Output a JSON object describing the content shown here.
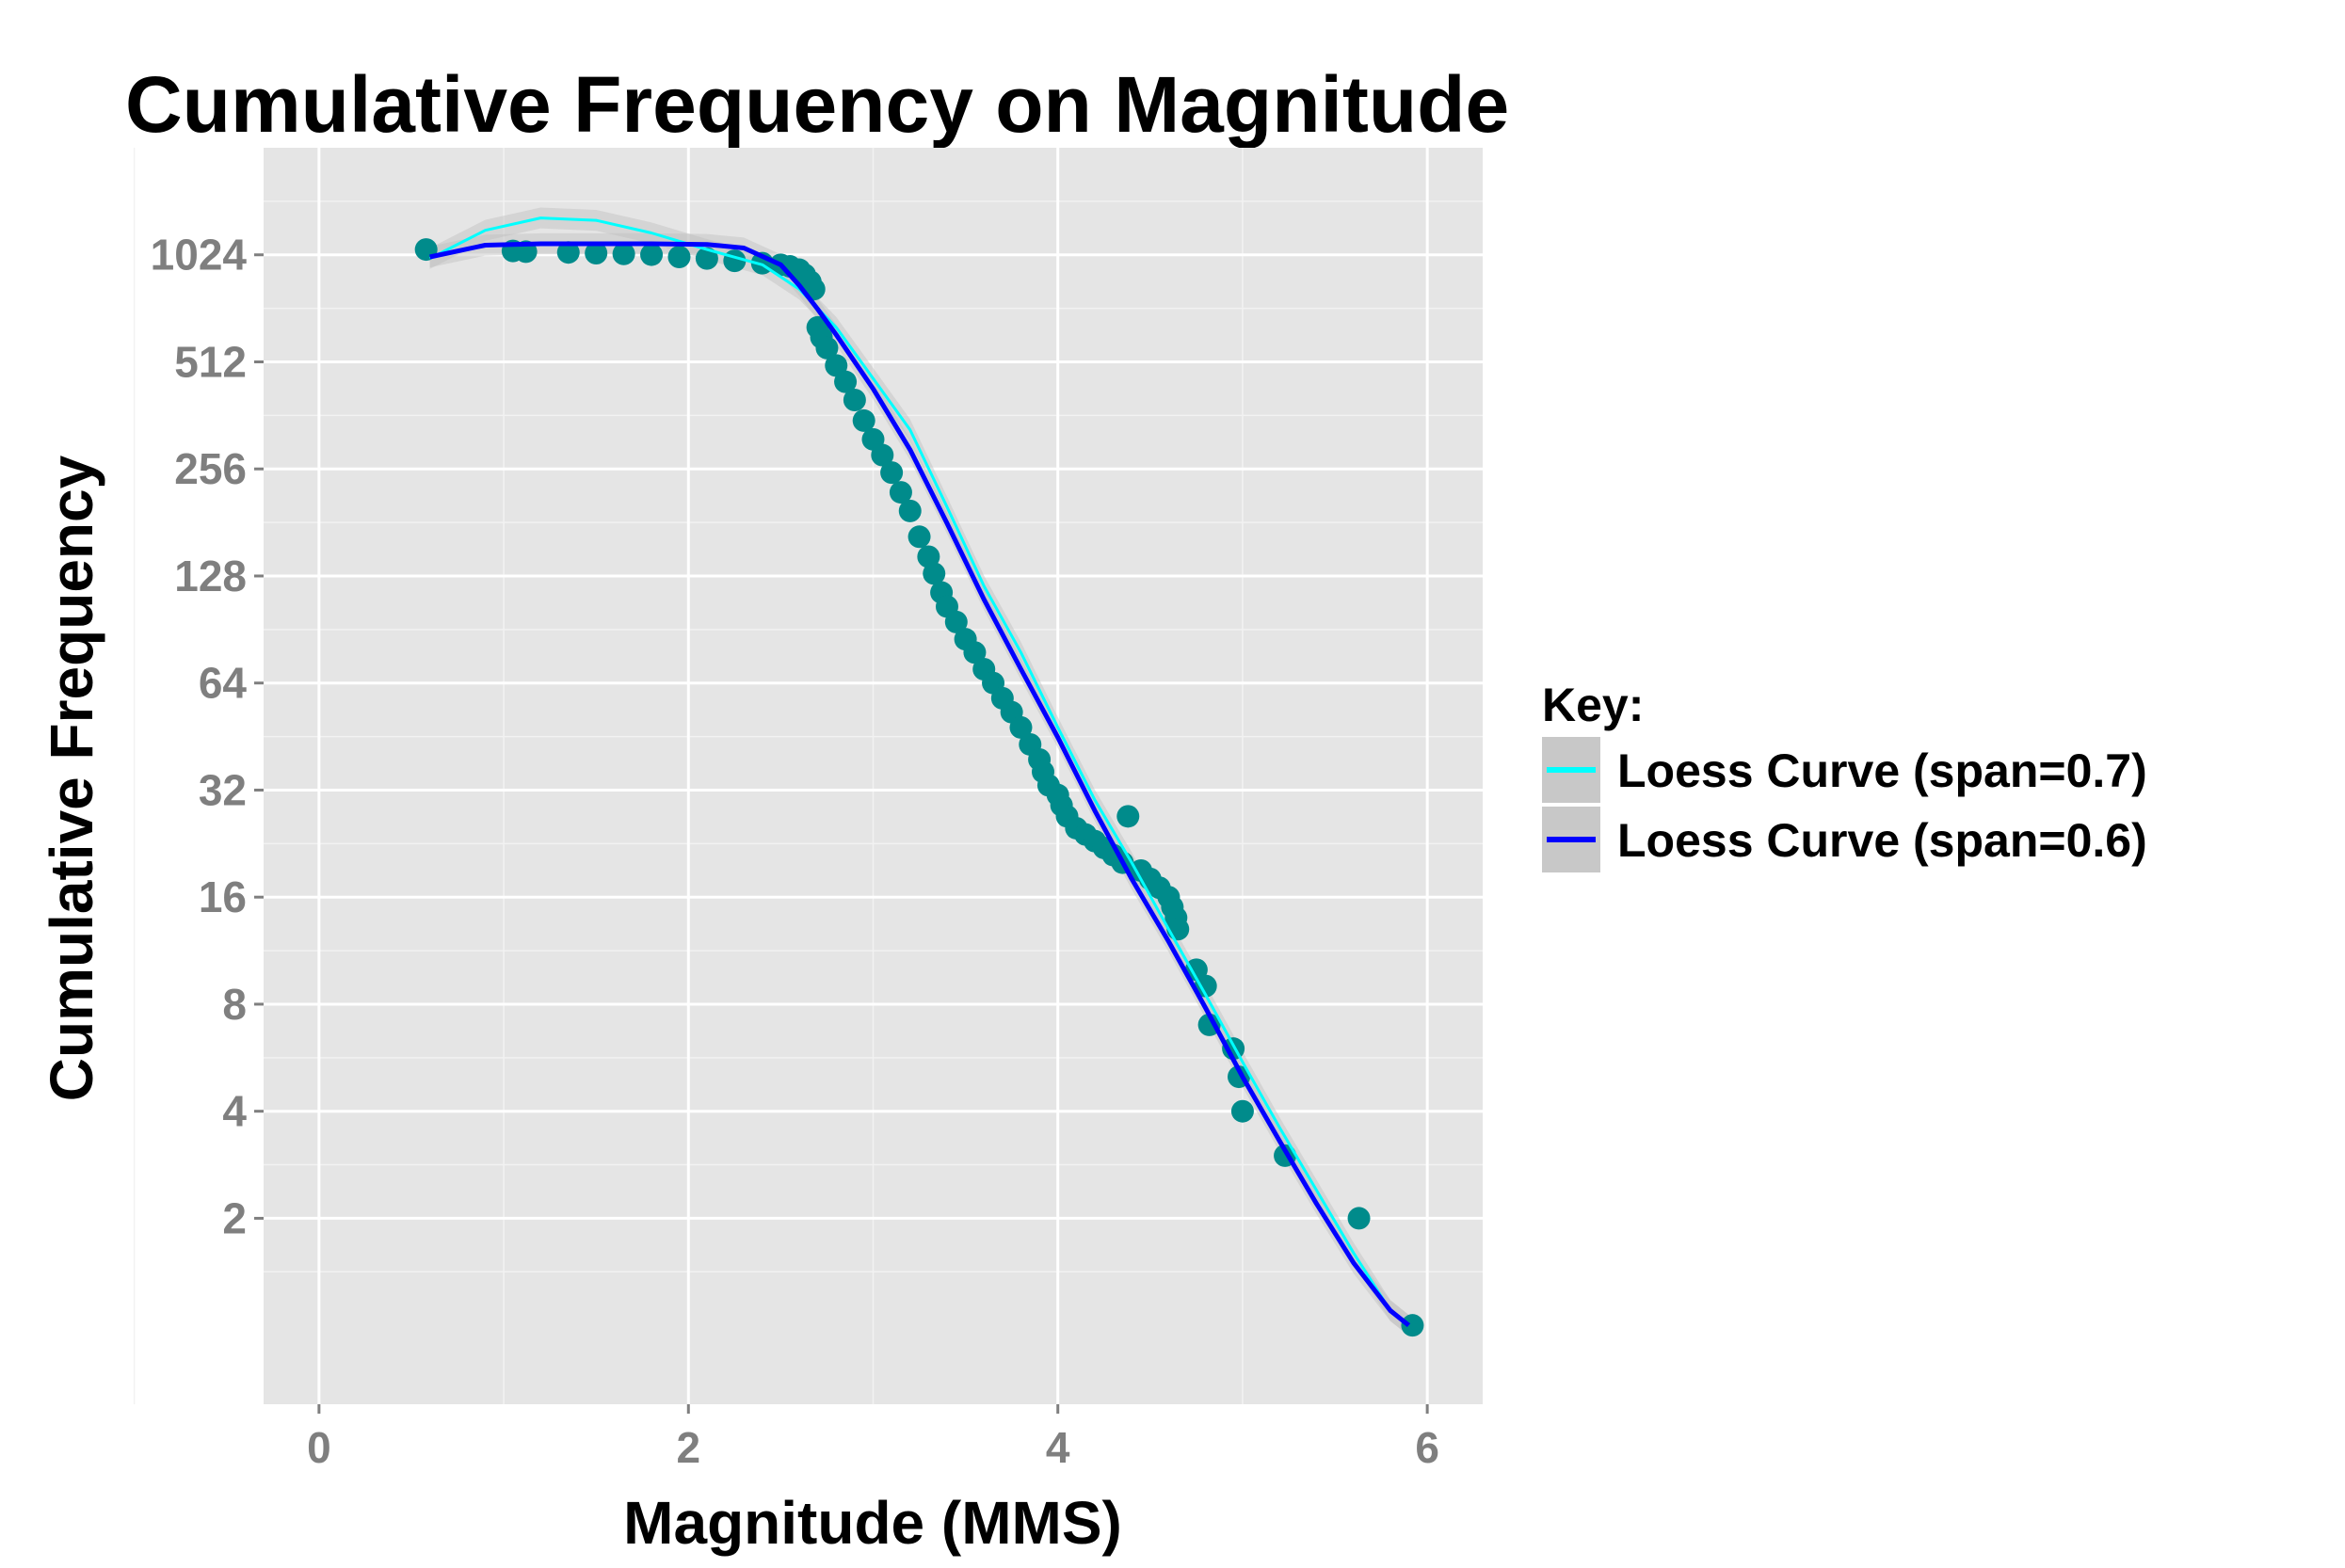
{
  "chart_data": {
    "type": "scatter",
    "title": "Cumulative Frequency on Magnitude",
    "xlabel": "Magnitude (MMS)",
    "ylabel": "Cumulative Frequency",
    "x_scale": "linear",
    "y_scale": "log2",
    "xlim": [
      -0.3,
      6.3
    ],
    "ylim": [
      0.6,
      2048
    ],
    "x_ticks": [
      0,
      2,
      4,
      6
    ],
    "x_tick_labels": [
      "0",
      "2",
      "4",
      "6"
    ],
    "y_ticks": [
      2,
      4,
      8,
      16,
      32,
      64,
      128,
      256,
      512,
      1024
    ],
    "y_tick_labels": [
      "2",
      "4",
      "8",
      "16",
      "32",
      "64",
      "128",
      "256",
      "512",
      "1024"
    ],
    "grid": true,
    "legend": {
      "title": "Key:",
      "position": "right",
      "entries": [
        {
          "label": "Loess Curve (span=0.7)",
          "color": "#00ffff"
        },
        {
          "label": "Loess Curve (span=0.6)",
          "color": "#0000ff"
        }
      ]
    },
    "colors": {
      "points": "#008b8b",
      "panel_background": "#e5e5e5",
      "grid": "#ffffff",
      "confidence_band": "#bfbfbf"
    },
    "series": [
      {
        "kind": "points",
        "x": [
          0.58,
          1.05,
          1.12,
          1.35,
          1.5,
          1.65,
          1.8,
          1.95,
          2.1,
          2.25,
          2.4,
          2.5,
          2.55,
          2.6,
          2.63,
          2.66,
          2.68,
          2.7,
          2.72,
          2.75,
          2.8,
          2.85,
          2.9,
          2.95,
          3.0,
          3.05,
          3.1,
          3.15,
          3.2,
          3.25,
          3.3,
          3.33,
          3.37,
          3.4,
          3.45,
          3.5,
          3.55,
          3.6,
          3.65,
          3.7,
          3.75,
          3.8,
          3.85,
          3.9,
          3.92,
          3.95,
          4.0,
          4.02,
          4.05,
          4.1,
          4.15,
          4.2,
          4.25,
          4.3,
          4.35,
          4.38,
          4.45,
          4.5,
          4.55,
          4.6,
          4.62,
          4.64,
          4.65,
          4.75,
          4.8,
          4.82,
          4.95,
          4.98,
          5.0,
          5.23,
          5.63,
          5.92
        ],
        "y": [
          1060,
          1050,
          1045,
          1040,
          1035,
          1030,
          1025,
          1010,
          1000,
          985,
          970,
          960,
          950,
          930,
          900,
          860,
          820,
          640,
          600,
          560,
          500,
          450,
          400,
          350,
          310,
          280,
          250,
          220,
          195,
          165,
          145,
          130,
          115,
          105,
          95,
          85,
          78,
          70,
          64,
          58,
          53,
          48,
          43,
          39,
          36,
          33,
          31,
          29,
          27,
          25,
          24,
          23,
          22,
          21,
          20,
          27,
          19,
          18,
          17,
          16,
          15,
          14,
          13,
          10,
          9,
          7,
          6,
          5,
          4,
          3,
          2,
          1
        ]
      },
      {
        "kind": "line",
        "name": "Loess Curve (span=0.7)",
        "x": [
          0.6,
          0.9,
          1.2,
          1.5,
          1.8,
          2.1,
          2.4,
          2.6,
          2.8,
          3.0,
          3.2,
          3.4,
          3.6,
          3.8,
          4.0,
          4.2,
          4.4,
          4.6,
          4.8,
          5.0,
          5.2,
          5.4,
          5.6,
          5.8,
          5.9
        ],
        "y": [
          1000,
          1200,
          1300,
          1280,
          1180,
          1060,
          960,
          820,
          640,
          460,
          330,
          200,
          120,
          78,
          48,
          30,
          20,
          13,
          8.5,
          5.5,
          3.6,
          2.4,
          1.6,
          1.1,
          1.0
        ]
      },
      {
        "kind": "line",
        "name": "Loess Curve (span=0.6)",
        "x": [
          0.6,
          0.9,
          1.2,
          1.5,
          1.8,
          2.1,
          2.3,
          2.5,
          2.6,
          2.7,
          2.8,
          3.0,
          3.2,
          3.4,
          3.6,
          3.8,
          4.0,
          4.2,
          4.4,
          4.6,
          4.8,
          5.0,
          5.2,
          5.4,
          5.6,
          5.8,
          5.9
        ],
        "y": [
          1010,
          1090,
          1100,
          1100,
          1100,
          1095,
          1070,
          960,
          840,
          720,
          610,
          430,
          290,
          180,
          110,
          70,
          45,
          28,
          18,
          12,
          7.8,
          5.0,
          3.3,
          2.2,
          1.5,
          1.1,
          1.0
        ]
      }
    ]
  }
}
